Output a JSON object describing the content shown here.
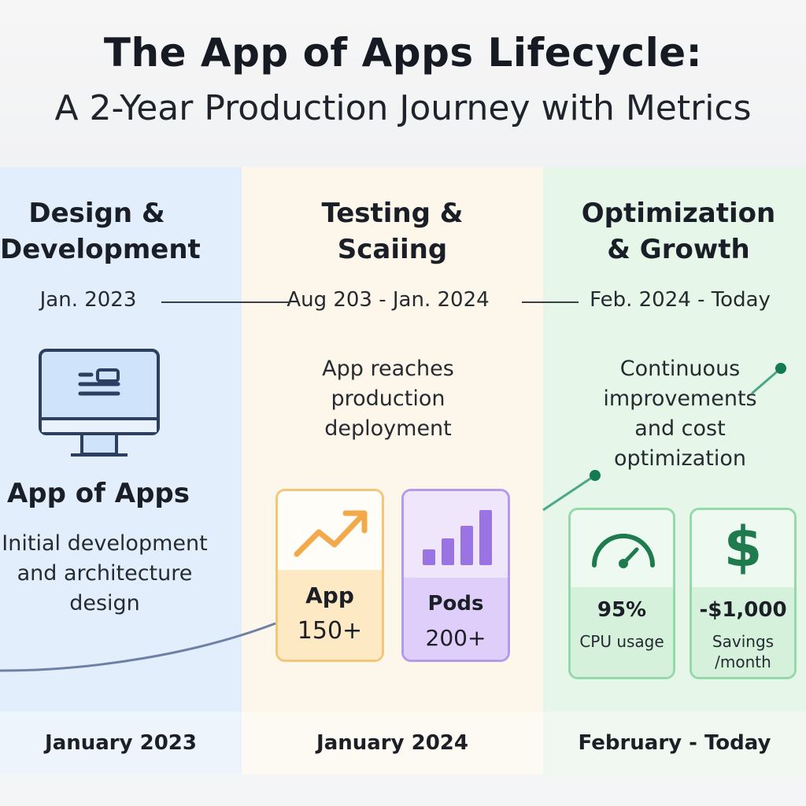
{
  "header": {
    "title": "The App of Apps Lifecycle:",
    "subtitle": "A 2-Year Production Journey with Metrics"
  },
  "phases": [
    {
      "title_line1": "Design &",
      "title_line2": "Development",
      "date": "Jan. 2023",
      "heading": "App of Apps",
      "desc_line1": "Initial development",
      "desc_line2": "and architecture",
      "desc_line3": "design",
      "footer": "January 2023",
      "icon": "monitor-icon"
    },
    {
      "title_line1": "Testing &",
      "title_line2": "Scaiing",
      "date": "Aug 203 - Jan. 2024",
      "desc_line1": "App reaches",
      "desc_line2": "production",
      "desc_line3": "deployment",
      "footer": "January 2024"
    },
    {
      "title_line1": "Optimization",
      "title_line2": "& Growth",
      "date": "Feb. 2024 - Today",
      "desc_line1": "Continuous",
      "desc_line2": "improvements",
      "desc_line3": "and cost",
      "desc_line4": "optimization",
      "footer": "February - Today"
    }
  ],
  "metrics": [
    {
      "label": "App",
      "value": "150+",
      "icon": "trend-up-icon"
    },
    {
      "label": "Pods",
      "value": "200+",
      "icon": "bar-chart-icon"
    },
    {
      "value": "95%",
      "caption": "CPU usage",
      "icon": "gauge-icon"
    },
    {
      "value": "-$1,000",
      "caption_line1": "Savings",
      "caption_line2": "/month",
      "icon": "dollar-icon"
    }
  ],
  "colors": {
    "phase1_bg": "#e3eefc",
    "phase2_bg": "#fdf6ea",
    "phase3_bg": "#e6f6e9",
    "accent_orange": "#f2a94b",
    "accent_purple": "#9a74e2",
    "accent_green": "#1f7a4e"
  }
}
